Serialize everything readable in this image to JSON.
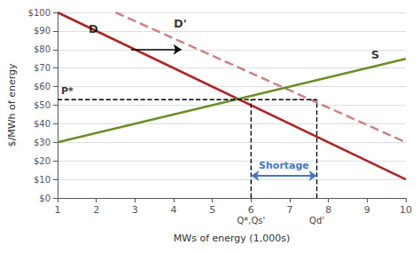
{
  "chart_data": {
    "type": "line",
    "xlabel": "MWs of energy (1,000s)",
    "ylabel": "$/MWh of energy",
    "xlim": [
      1,
      10
    ],
    "xticks": [
      1,
      2,
      3,
      4,
      5,
      6,
      7,
      8,
      9,
      10
    ],
    "ylim": [
      0,
      100
    ],
    "yticks": [
      {
        "value": 0,
        "label": "$0"
      },
      {
        "value": 10,
        "label": "$10"
      },
      {
        "value": 20,
        "label": "$20"
      },
      {
        "value": 30,
        "label": "$30"
      },
      {
        "value": 40,
        "label": "$40"
      },
      {
        "value": 50,
        "label": "$50"
      },
      {
        "value": 60,
        "label": "$60"
      },
      {
        "value": 70,
        "label": "$70"
      },
      {
        "value": 80,
        "label": "$80"
      },
      {
        "value": 90,
        "label": "$90"
      },
      {
        "value": 100,
        "label": "$100"
      }
    ],
    "grid": "y",
    "series": [
      {
        "name": "D",
        "x": [
          1,
          10
        ],
        "values": [
          100,
          10
        ],
        "color": "#B22222",
        "line_style": "solid"
      },
      {
        "name": "D'",
        "x": [
          2.5,
          10
        ],
        "values": [
          100,
          30
        ],
        "color": "#D08080",
        "line_style": "dashed"
      },
      {
        "name": "S",
        "x": [
          1,
          10
        ],
        "values": [
          30,
          75
        ],
        "color": "#6B8E23",
        "line_style": "solid"
      }
    ],
    "annotations": [
      {
        "text": "D",
        "x": 1.8,
        "y": 88
      },
      {
        "text": "D'",
        "x": 4.0,
        "y": 91
      },
      {
        "text": "S",
        "x": 9.1,
        "y": 74
      }
    ],
    "price_line": {
      "label": "P*",
      "value": 53
    },
    "quantity_lines": [
      {
        "label": "Q*,Qs'",
        "value": 6.0
      },
      {
        "label": "Qd'",
        "value": 7.7
      }
    ],
    "shortage": {
      "label": "Shortage",
      "color": "#4477CC",
      "y": 12
    },
    "arrows": [
      {
        "from": 2.9,
        "to": 4.2,
        "y": 80,
        "color": "black"
      }
    ]
  }
}
